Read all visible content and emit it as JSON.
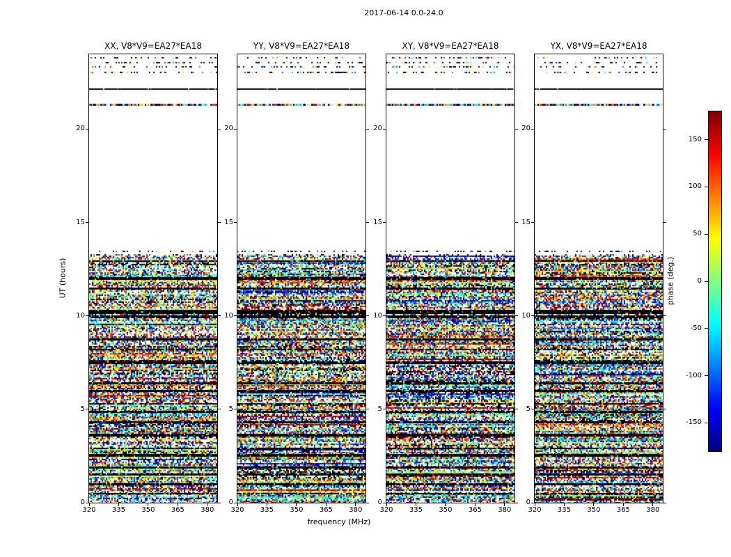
{
  "title": "2017-06-14 0.0-24.0",
  "chart_data": {
    "type": "heatmap",
    "title": "2017-06-14 0.0-24.0",
    "xlabel": "frequency (MHz)",
    "ylabel": "UT (hours)",
    "x_range": [
      320,
      385
    ],
    "y_range": [
      0,
      24
    ],
    "xticks": [
      320,
      335,
      350,
      365,
      380
    ],
    "yticks": [
      0,
      5,
      10,
      15,
      20
    ],
    "panels": [
      {
        "title": "XX, V8*V9=EA27*EA18",
        "polarization": "XX"
      },
      {
        "title": "YY, V8*V9=EA27*EA18",
        "polarization": "YY"
      },
      {
        "title": "XY, V8*V9=EA27*EA18",
        "polarization": "XY"
      },
      {
        "title": "YX, V8*V9=EA27*EA18",
        "polarization": "YX"
      }
    ],
    "colorbar": {
      "label": "phase (deg.)",
      "ticks": [
        150,
        100,
        50,
        0,
        -50,
        -100,
        -150
      ],
      "range": [
        -180,
        180
      ],
      "colormap": "jet"
    },
    "segments": {
      "noise_ut": [
        0,
        13.2
      ],
      "blank_ut": [
        13.2,
        21.2
      ],
      "feature_lines": [
        {
          "ut": 23.85,
          "style": "dotted"
        },
        {
          "ut": 23.6,
          "style": "dotted"
        },
        {
          "ut": 23.35,
          "style": "dotted"
        },
        {
          "ut": 23.05,
          "style": "dotted"
        },
        {
          "ut": 22.17,
          "style": "solid"
        },
        {
          "ut": 21.3,
          "style": "noise"
        },
        {
          "ut": 13.5,
          "style": "dotted"
        },
        {
          "ut": 13.32,
          "style": "dotted"
        }
      ],
      "dark_bands": [
        {
          "ut": 12.95,
          "h": 2
        },
        {
          "ut": 12.0,
          "h": 4
        },
        {
          "ut": 11.45,
          "h": 3
        },
        {
          "ut": 10.2,
          "h": 6
        },
        {
          "ut": 9.95,
          "h": 4
        },
        {
          "ut": 8.75,
          "h": 3
        },
        {
          "ut": 8.2,
          "h": 2
        },
        {
          "ut": 7.5,
          "h": 4
        },
        {
          "ut": 6.4,
          "h": 3
        },
        {
          "ut": 6.0,
          "h": 3
        },
        {
          "ut": 5.3,
          "h": 2
        },
        {
          "ut": 4.85,
          "h": 3
        },
        {
          "ut": 4.3,
          "h": 3
        },
        {
          "ut": 3.6,
          "h": 4
        },
        {
          "ut": 2.9,
          "h": 2
        },
        {
          "ut": 2.55,
          "h": 4
        },
        {
          "ut": 1.9,
          "h": 3
        },
        {
          "ut": 1.5,
          "h": 3
        },
        {
          "ut": 1.0,
          "h": 3
        },
        {
          "ut": 0.5,
          "h": 2
        }
      ]
    },
    "seed": 20170614
  }
}
